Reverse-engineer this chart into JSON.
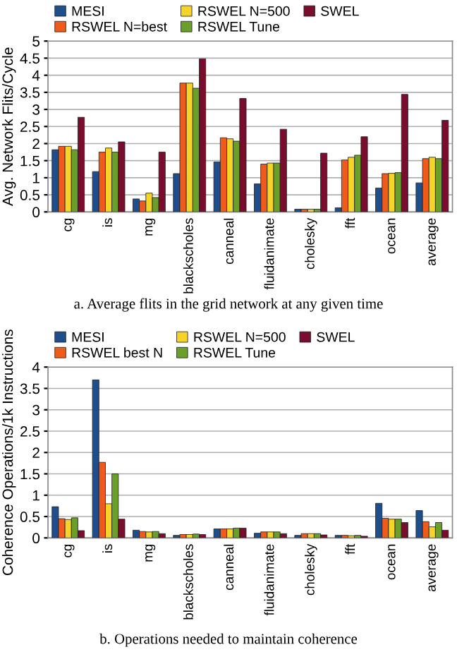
{
  "chart_data": [
    {
      "type": "bar",
      "ylabel": "Avg. Network Flits/Cycle",
      "categories": [
        "cg",
        "is",
        "mg",
        "blackscholes",
        "canneal",
        "fluidanimate",
        "cholesky",
        "fft",
        "ocean",
        "average"
      ],
      "series": [
        {
          "name": "MESI",
          "color": "#1f4e8c",
          "values": [
            1.82,
            1.18,
            0.38,
            1.12,
            1.46,
            0.82,
            0.08,
            0.12,
            0.7,
            0.85
          ]
        },
        {
          "name": "RSWEL N=best",
          "color": "#f05a1a",
          "values": [
            1.92,
            1.75,
            0.32,
            3.77,
            2.17,
            1.4,
            0.08,
            1.52,
            1.12,
            1.56
          ]
        },
        {
          "name": "RSWEL N=500",
          "color": "#f5d327",
          "values": [
            1.92,
            1.87,
            0.55,
            3.77,
            2.14,
            1.43,
            0.08,
            1.6,
            1.13,
            1.6
          ]
        },
        {
          "name": "RSWEL Tune",
          "color": "#6aa02a",
          "values": [
            1.82,
            1.75,
            0.42,
            3.62,
            2.07,
            1.43,
            0.08,
            1.66,
            1.15,
            1.56
          ]
        },
        {
          "name": "SWEL",
          "color": "#7a0c2e",
          "values": [
            2.77,
            2.05,
            1.75,
            4.48,
            3.32,
            2.42,
            1.72,
            2.2,
            3.44,
            2.68
          ]
        }
      ],
      "ylim": [
        0,
        5
      ],
      "yticks": [
        0,
        0.5,
        1,
        1.5,
        2,
        2.5,
        3,
        3.5,
        4,
        4.5,
        5
      ],
      "grid": "y",
      "legend": "top",
      "annotations": [
        "a. Average flits in the grid network at any given time"
      ]
    },
    {
      "type": "bar",
      "ylabel": "Coherence Operations/1k Instructions",
      "categories": [
        "cg",
        "is",
        "mg",
        "blackscholes",
        "canneal",
        "fluidanimate",
        "cholesky",
        "fft",
        "ocean",
        "average"
      ],
      "series": [
        {
          "name": "MESI",
          "color": "#1f4e8c",
          "values": [
            0.73,
            3.7,
            0.18,
            0.06,
            0.21,
            0.11,
            0.06,
            0.06,
            0.81,
            0.64
          ]
        },
        {
          "name": "RSWEL best N",
          "color": "#f05a1a",
          "values": [
            0.45,
            1.77,
            0.15,
            0.08,
            0.21,
            0.14,
            0.1,
            0.06,
            0.46,
            0.38
          ]
        },
        {
          "name": "RSWEL N=500",
          "color": "#f5d327",
          "values": [
            0.43,
            0.8,
            0.14,
            0.08,
            0.21,
            0.14,
            0.1,
            0.05,
            0.44,
            0.26
          ]
        },
        {
          "name": "RSWEL Tune",
          "color": "#6aa02a",
          "values": [
            0.47,
            1.5,
            0.15,
            0.09,
            0.23,
            0.14,
            0.1,
            0.06,
            0.44,
            0.36
          ]
        },
        {
          "name": "SWEL",
          "color": "#7a0c2e",
          "values": [
            0.17,
            0.44,
            0.1,
            0.08,
            0.23,
            0.1,
            0.07,
            0.04,
            0.36,
            0.18
          ]
        }
      ],
      "ylim": [
        0,
        4
      ],
      "yticks": [
        0,
        0.5,
        1,
        1.5,
        2,
        2.5,
        3,
        3.5,
        4
      ],
      "grid": "y",
      "legend": "top",
      "annotations": [
        "b. Operations needed to maintain coherence"
      ]
    }
  ]
}
